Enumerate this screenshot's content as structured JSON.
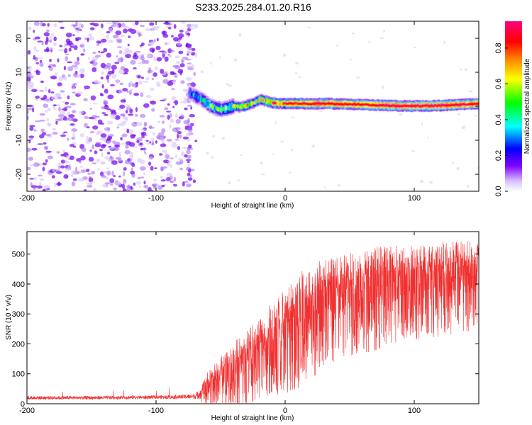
{
  "title": "S233.2025.284.01.20.R16",
  "chart_data": [
    {
      "type": "heatmap",
      "name": "spectrogram",
      "xlabel": "Height of straight line (km)",
      "ylabel": "Frequency (Hz)",
      "xlim": [
        -200,
        150
      ],
      "ylim": [
        -25,
        25
      ],
      "x_ticks": [
        -200,
        -100,
        0,
        100
      ],
      "y_ticks": [
        -20,
        -10,
        0,
        10,
        20
      ],
      "colorbar": {
        "label": "Normalized spectral amplitude",
        "range": [
          0,
          0.95
        ],
        "ticks": [
          "0.0",
          "0.2",
          "0.4",
          "0.6",
          "0.8"
        ],
        "colormap": [
          "#ffffff",
          "#c8a0ff",
          "#8000ff",
          "#0000ff",
          "#00ffff",
          "#00ff00",
          "#ffff00",
          "#ff8000",
          "#ff0000",
          "#ff0080"
        ]
      },
      "noise_region_km": [
        -200,
        -75
      ],
      "signal_trace": {
        "x": [
          -75,
          -70,
          -65,
          -60,
          -55,
          -50,
          -45,
          -40,
          -35,
          -30,
          -25,
          -20,
          -15,
          -10,
          -5,
          0,
          10,
          20,
          30,
          40,
          50,
          60,
          70,
          80,
          90,
          100,
          110,
          120,
          130,
          140,
          150
        ],
        "freq": [
          4,
          3,
          2,
          0.5,
          -0.5,
          -1,
          -0.5,
          0,
          -0.2,
          0.3,
          1,
          2,
          1.5,
          1,
          0.8,
          0.8,
          0.8,
          0.7,
          0.8,
          0.7,
          0.6,
          0.5,
          0.3,
          0.2,
          0.1,
          0.1,
          0.1,
          0.2,
          0.4,
          0.6,
          0.8
        ],
        "amplitude": [
          0.3,
          0.35,
          0.4,
          0.45,
          0.45,
          0.5,
          0.5,
          0.55,
          0.6,
          0.65,
          0.6,
          0.65,
          0.7,
          0.75,
          0.8,
          0.85,
          0.85,
          0.9,
          0.9,
          0.9,
          0.88,
          0.88,
          0.9,
          0.92,
          0.9,
          0.92,
          0.93,
          0.93,
          0.92,
          0.9,
          0.9
        ]
      }
    },
    {
      "type": "line",
      "name": "snr",
      "xlabel": "Height of straight line (km)",
      "ylabel": "SNR (10 * v/v)",
      "xlim": [
        -200,
        150
      ],
      "ylim": [
        0,
        575
      ],
      "x_ticks": [
        -200,
        -100,
        0,
        100
      ],
      "y_ticks": [
        0,
        100,
        200,
        300,
        400,
        500
      ],
      "color": "#f03030",
      "series": [
        {
          "name": "SNR",
          "envelope_x": [
            -200,
            -150,
            -100,
            -80,
            -70,
            -65,
            -60,
            -50,
            -40,
            -30,
            -20,
            -10,
            0,
            10,
            20,
            30,
            40,
            50,
            60,
            70,
            80,
            90,
            100,
            110,
            120,
            130,
            140,
            150
          ],
          "mean": [
            20,
            20,
            22,
            23,
            25,
            35,
            60,
            90,
            120,
            150,
            190,
            220,
            250,
            290,
            320,
            350,
            360,
            375,
            380,
            395,
            400,
            405,
            410,
            415,
            420,
            425,
            430,
            440
          ],
          "spread": [
            6,
            6,
            6,
            7,
            9,
            20,
            40,
            55,
            70,
            80,
            90,
            100,
            110,
            120,
            120,
            115,
            110,
            110,
            110,
            110,
            105,
            105,
            100,
            100,
            100,
            100,
            95,
            95
          ]
        }
      ]
    }
  ]
}
